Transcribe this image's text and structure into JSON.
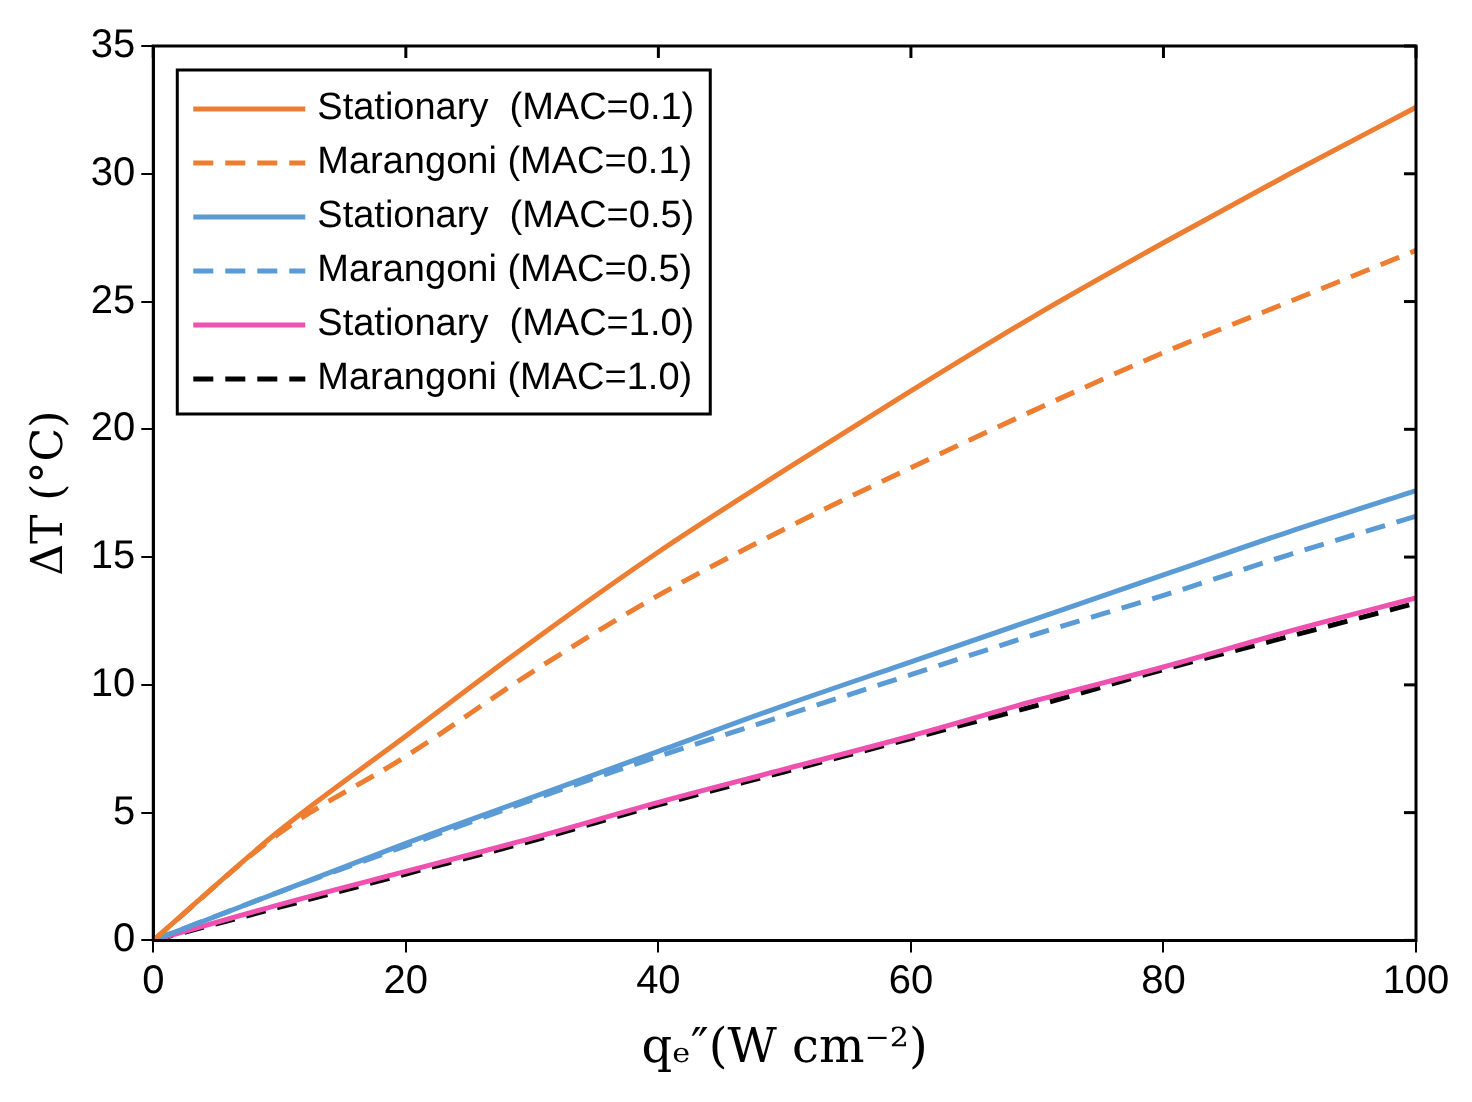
{
  "chart_data": {
    "type": "line",
    "xlabel": "qₑ″(W cm⁻²)",
    "ylabel": "ΔT (°C)",
    "x": [
      0,
      10,
      20,
      30,
      40,
      50,
      60,
      70,
      80,
      90,
      100
    ],
    "series": [
      {
        "name": "Stationary  (MAC=0.1)",
        "color": "#ed7d31",
        "line_style": "solid",
        "values": [
          0,
          4.3,
          8.0,
          11.7,
          15.2,
          18.4,
          21.5,
          24.5,
          27.3,
          30.0,
          32.6
        ]
      },
      {
        "name": "Marangoni (MAC=0.1)",
        "color": "#ed7d31",
        "line_style": "dashed",
        "values": [
          0,
          4.2,
          7.2,
          10.5,
          13.5,
          16.1,
          18.5,
          20.8,
          23.0,
          25.0,
          27.0
        ]
      },
      {
        "name": "Stationary  (MAC=0.5)",
        "color": "#5b9bd5",
        "line_style": "solid",
        "values": [
          0,
          1.9,
          3.8,
          5.6,
          7.4,
          9.2,
          10.9,
          12.6,
          14.3,
          16.0,
          17.6
        ]
      },
      {
        "name": "Marangoni (MAC=0.5)",
        "color": "#5b9bd5",
        "line_style": "dashed",
        "values": [
          0,
          1.9,
          3.7,
          5.5,
          7.2,
          8.8,
          10.4,
          12.0,
          13.5,
          15.1,
          16.6
        ]
      },
      {
        "name": "Stationary  (MAC=1.0)",
        "color": "#f050b0",
        "line_style": "solid",
        "values": [
          0,
          1.4,
          2.7,
          4.0,
          5.4,
          6.7,
          8.0,
          9.4,
          10.7,
          12.1,
          13.4
        ]
      },
      {
        "name": "Marangoni (MAC=1.0)",
        "color": "#000000",
        "line_style": "dashed",
        "values": [
          0,
          1.3,
          2.6,
          3.9,
          5.3,
          6.6,
          7.9,
          9.2,
          10.6,
          11.9,
          13.2
        ]
      }
    ],
    "xlim": [
      0,
      100
    ],
    "xticks": [
      0,
      20,
      40,
      60,
      80,
      100
    ],
    "ylim": [
      0,
      35
    ],
    "yticks": [
      0,
      5,
      10,
      15,
      20,
      25,
      30,
      35
    ],
    "grid": false,
    "legend": "top left",
    "marker": "none"
  }
}
